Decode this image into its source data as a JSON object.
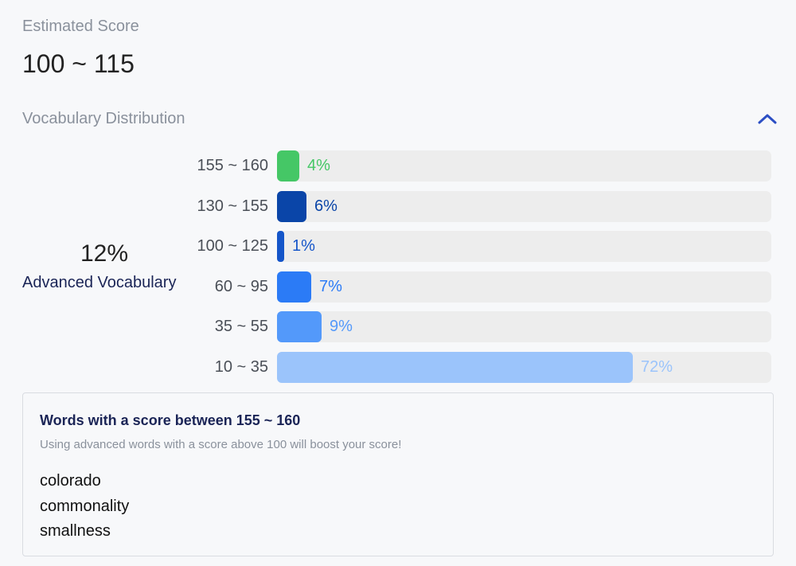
{
  "estimated_score": {
    "label": "Estimated Score",
    "value": "100 ~ 115"
  },
  "vocabulary": {
    "header": "Vocabulary Distribution",
    "collapse_icon": "chevron-up-icon",
    "summary_percent": "12%",
    "summary_label": "Advanced Vocabulary"
  },
  "chart_data": {
    "type": "bar",
    "orientation": "horizontal",
    "categories": [
      "155 ~ 160",
      "130 ~ 155",
      "100 ~ 125",
      "60 ~ 95",
      "35 ~ 55",
      "10 ~ 35"
    ],
    "values": [
      4,
      6,
      1,
      7,
      9,
      72
    ],
    "value_labels": [
      "4%",
      "6%",
      "1%",
      "7%",
      "9%",
      "72%"
    ],
    "bar_colors": [
      "#45c766",
      "#0a45a8",
      "#1455c9",
      "#2b7bf6",
      "#5399fa",
      "#9bc4fb"
    ],
    "label_colors": [
      "#45c766",
      "#0a45a8",
      "#1455c9",
      "#2b7bf6",
      "#5399fa",
      "#9bc4fb"
    ],
    "track_color": "#ededed",
    "xlim": [
      0,
      100
    ]
  },
  "words": {
    "title": "Words with a score between 155 ~ 160",
    "subtitle": "Using advanced words with a score above 100 will boost your score!",
    "items": [
      "colorado",
      "commonality",
      "smallness"
    ]
  }
}
